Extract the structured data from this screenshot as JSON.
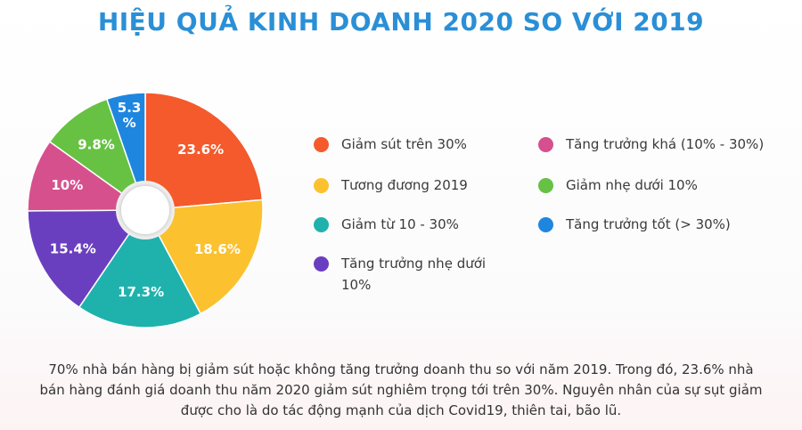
{
  "title": "HIỆU QUẢ KINH DOANH 2020 SO VỚI 2019",
  "chart_data": {
    "type": "pie",
    "title": "HIỆU QUẢ KINH DOANH 2020 SO VỚI 2019",
    "slices": [
      {
        "label": "Giảm sút trên 30%",
        "value": 23.6,
        "display": "23.6%",
        "color": "#f45a2c"
      },
      {
        "label": "Tương đương 2019",
        "value": 18.6,
        "display": "18.6%",
        "color": "#fcc12e"
      },
      {
        "label": "Giảm từ 10 - 30%",
        "value": 17.3,
        "display": "17.3%",
        "color": "#1fb2ad"
      },
      {
        "label": "Tăng trưởng nhẹ dưới 10%",
        "value": 15.4,
        "display": "15.4%",
        "color": "#6a3fbf"
      },
      {
        "label": "Tăng trưởng khá (10% - 30%)",
        "value": 10,
        "display": "10%",
        "color": "#d6508e"
      },
      {
        "label": "Giảm nhẹ dưới 10%",
        "value": 9.8,
        "display": "9.8%",
        "color": "#67c143"
      },
      {
        "label": "Tăng trưởng tốt (> 30%)",
        "value": 5.3,
        "display": "5.3\n%",
        "color": "#1f86e0"
      }
    ],
    "legend_position": "right"
  },
  "legend": [
    {
      "label": "Giảm sút trên 30%",
      "color": "#f45a2c"
    },
    {
      "label": "Tương đương 2019",
      "color": "#fcc12e"
    },
    {
      "label": "Giảm từ 10 - 30%",
      "color": "#1fb2ad"
    },
    {
      "label": "Tăng trưởng nhẹ dưới 10%",
      "color": "#6a3fbf"
    },
    {
      "label": "Tăng trưởng khá (10% - 30%)",
      "color": "#d6508e"
    },
    {
      "label": "Giảm nhẹ dưới 10%",
      "color": "#67c143"
    },
    {
      "label": "Tăng trưởng tốt (> 30%)",
      "color": "#1f86e0"
    }
  ],
  "note": "70% nhà bán hàng bị giảm sút hoặc không tăng trưởng doanh thu so với năm 2019. Trong đó, 23.6% nhà bán hàng đánh giá doanh thu năm 2020 giảm sút nghiêm trọng tới trên 30%. Nguyên nhân của sự sụt giảm được cho là do tác động mạnh của dịch Covid19, thiên tai, bão lũ."
}
